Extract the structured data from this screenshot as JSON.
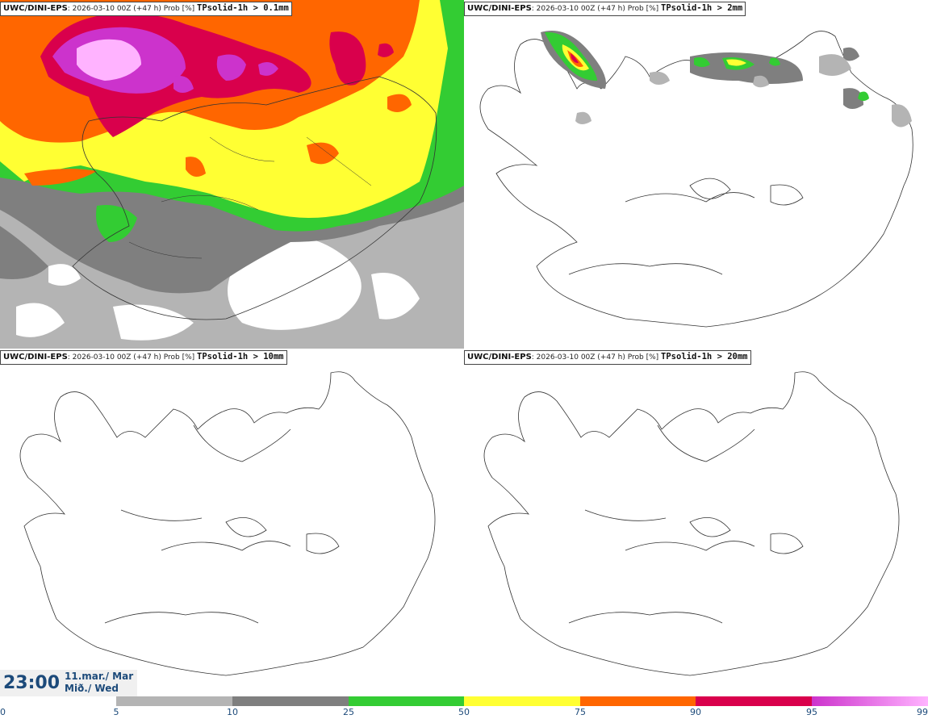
{
  "panels": [
    {
      "model": "UWC/DINI-EPS",
      "meta": ": 2026-03-10 00Z (+47 h) Prob [%] ",
      "param": "TPsolid-1h > 0.1mm"
    },
    {
      "model": "UWC/DINI-EPS",
      "meta": ": 2026-03-10 00Z (+47 h) Prob [%] ",
      "param": "TPsolid-1h > 2mm"
    },
    {
      "model": "UWC/DINI-EPS",
      "meta": ": 2026-03-10 00Z (+47 h) Prob [%] ",
      "param": "TPsolid-1h > 10mm"
    },
    {
      "model": "UWC/DINI-EPS",
      "meta": ": 2026-03-10 00Z (+47 h) Prob [%] ",
      "param": "TPsolid-1h > 20mm"
    }
  ],
  "valid_time": {
    "time": "23:00",
    "date": "11.mar./ Mar",
    "weekday": "Mið./ Wed"
  },
  "colorbar": {
    "ticks": [
      "0",
      "5",
      "10",
      "25",
      "50",
      "75",
      "90",
      "95",
      "99"
    ],
    "colors": [
      "#ffffff",
      "#b4b4b4",
      "#7f7f7f",
      "#33cc33",
      "#ffff33",
      "#ff6600",
      "#d9004c",
      "#cc33cc"
    ],
    "last_gradient_end": "#ffb3ff"
  },
  "fill_colors": {
    "light_gray": "#b4b4b4",
    "dark_gray": "#7f7f7f",
    "green": "#33cc33",
    "yellow": "#ffff33",
    "orange": "#ff6600",
    "red": "#d9004c",
    "magenta": "#cc33cc",
    "pink": "#ffb3ff"
  }
}
